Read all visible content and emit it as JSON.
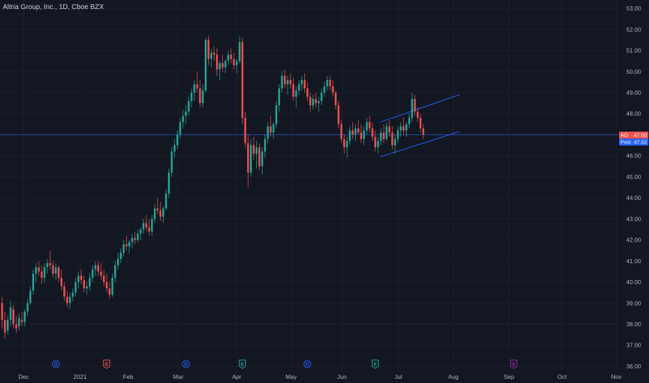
{
  "header": {
    "title": "Altria Group, Inc., 1D, Cboe BZX"
  },
  "price_labels": [
    {
      "tag": "AO",
      "value": "47.00",
      "color": "#ef5350"
    },
    {
      "tag": "Post",
      "value": "47.02",
      "color": "#2962ff"
    }
  ],
  "chart_data": {
    "type": "candlestick",
    "ylim": [
      35.8,
      53.4
    ],
    "yticks": [
      36,
      37,
      38,
      39,
      40,
      41,
      42,
      43,
      44,
      45,
      46,
      47,
      48,
      49,
      50,
      51,
      52,
      53
    ],
    "xticks": [
      "Dec",
      "2021",
      "Feb",
      "Mar",
      "Apr",
      "May",
      "Jun",
      "Jul",
      "Aug",
      "Sep",
      "Oct",
      "Nov"
    ],
    "current_price": 47.0,
    "up_color": "#26a69a",
    "down_color": "#ef5350",
    "line_color": "#2962ff",
    "channel": {
      "upper": [
        [
          0.0,
          47.6
        ],
        [
          1.0,
          48.9
        ]
      ],
      "lower": [
        [
          0.0,
          45.95
        ],
        [
          1.0,
          47.15
        ]
      ]
    },
    "ohlc": [
      [
        39.0,
        39.3,
        37.8,
        38.2
      ],
      [
        38.2,
        38.6,
        37.3,
        37.6
      ],
      [
        37.7,
        38.4,
        37.5,
        38.2
      ],
      [
        38.2,
        39.1,
        37.9,
        38.8
      ],
      [
        38.7,
        38.9,
        37.8,
        38.0
      ],
      [
        38.0,
        38.4,
        37.6,
        37.8
      ],
      [
        37.9,
        38.5,
        37.7,
        38.3
      ],
      [
        38.2,
        38.6,
        37.9,
        38.1
      ],
      [
        38.1,
        38.7,
        37.9,
        38.6
      ],
      [
        38.6,
        39.2,
        38.4,
        39.0
      ],
      [
        39.0,
        39.8,
        38.9,
        39.6
      ],
      [
        39.6,
        40.6,
        39.4,
        40.4
      ],
      [
        40.4,
        40.9,
        40.0,
        40.7
      ],
      [
        40.7,
        41.0,
        40.3,
        40.5
      ],
      [
        40.5,
        40.8,
        39.9,
        40.2
      ],
      [
        40.2,
        40.9,
        40.0,
        40.7
      ],
      [
        40.7,
        41.1,
        40.4,
        40.9
      ],
      [
        40.9,
        41.5,
        40.6,
        40.8
      ],
      [
        40.8,
        41.0,
        40.2,
        40.4
      ],
      [
        40.4,
        40.9,
        40.1,
        40.7
      ],
      [
        40.7,
        40.8,
        40.0,
        40.2
      ],
      [
        40.2,
        40.6,
        39.6,
        39.8
      ],
      [
        39.8,
        40.0,
        39.1,
        39.3
      ],
      [
        39.3,
        39.6,
        38.8,
        39.0
      ],
      [
        39.0,
        39.5,
        38.7,
        39.3
      ],
      [
        39.3,
        39.7,
        39.1,
        39.5
      ],
      [
        39.5,
        40.2,
        39.3,
        40.0
      ],
      [
        40.0,
        40.5,
        39.7,
        40.3
      ],
      [
        40.3,
        40.6,
        39.9,
        40.1
      ],
      [
        40.1,
        40.3,
        39.5,
        39.7
      ],
      [
        39.7,
        40.0,
        39.4,
        39.8
      ],
      [
        39.8,
        40.4,
        39.6,
        40.2
      ],
      [
        40.2,
        40.8,
        40.0,
        40.6
      ],
      [
        40.6,
        41.0,
        40.3,
        40.8
      ],
      [
        40.8,
        41.0,
        40.3,
        40.5
      ],
      [
        40.5,
        40.9,
        40.1,
        40.3
      ],
      [
        40.3,
        40.6,
        39.8,
        40.0
      ],
      [
        40.0,
        40.4,
        39.5,
        39.7
      ],
      [
        39.7,
        40.0,
        39.2,
        39.4
      ],
      [
        39.4,
        40.4,
        39.3,
        40.2
      ],
      [
        40.2,
        41.0,
        40.0,
        40.8
      ],
      [
        40.8,
        41.4,
        40.6,
        41.1
      ],
      [
        41.1,
        41.6,
        40.9,
        41.4
      ],
      [
        41.4,
        42.0,
        41.2,
        41.8
      ],
      [
        41.8,
        42.2,
        41.5,
        41.7
      ],
      [
        41.7,
        42.0,
        41.4,
        41.9
      ],
      [
        41.9,
        42.3,
        41.6,
        42.1
      ],
      [
        42.1,
        42.4,
        41.8,
        42.0
      ],
      [
        42.0,
        42.5,
        41.9,
        42.3
      ],
      [
        42.3,
        42.6,
        42.0,
        42.5
      ],
      [
        42.5,
        43.0,
        42.3,
        42.8
      ],
      [
        42.8,
        43.2,
        42.4,
        42.6
      ],
      [
        42.6,
        43.0,
        42.2,
        42.4
      ],
      [
        42.4,
        43.2,
        42.2,
        43.0
      ],
      [
        43.0,
        43.7,
        42.8,
        43.5
      ],
      [
        43.5,
        44.0,
        43.2,
        43.4
      ],
      [
        43.4,
        43.8,
        42.9,
        43.1
      ],
      [
        43.1,
        43.6,
        42.8,
        43.5
      ],
      [
        43.5,
        44.4,
        43.4,
        44.2
      ],
      [
        44.2,
        45.4,
        44.0,
        45.2
      ],
      [
        45.2,
        46.4,
        45.0,
        46.2
      ],
      [
        46.2,
        46.8,
        45.9,
        46.5
      ],
      [
        46.5,
        47.2,
        46.3,
        47.0
      ],
      [
        47.0,
        47.8,
        46.8,
        47.6
      ],
      [
        47.6,
        48.2,
        47.3,
        47.9
      ],
      [
        47.9,
        48.4,
        47.5,
        48.1
      ],
      [
        48.1,
        48.8,
        47.9,
        48.6
      ],
      [
        48.6,
        49.2,
        48.3,
        49.0
      ],
      [
        49.0,
        49.6,
        48.6,
        49.4
      ],
      [
        49.4,
        50.0,
        49.0,
        49.2
      ],
      [
        49.2,
        49.6,
        48.3,
        48.5
      ],
      [
        48.5,
        49.4,
        48.3,
        49.1
      ],
      [
        49.1,
        51.6,
        49.0,
        51.5
      ],
      [
        51.5,
        51.7,
        50.3,
        50.6
      ],
      [
        50.6,
        51.1,
        50.2,
        50.9
      ],
      [
        50.9,
        51.2,
        50.5,
        50.8
      ],
      [
        50.8,
        51.1,
        49.8,
        50.1
      ],
      [
        50.1,
        50.5,
        49.6,
        50.4
      ],
      [
        50.4,
        50.8,
        50.0,
        50.2
      ],
      [
        50.2,
        50.6,
        49.9,
        50.5
      ],
      [
        50.5,
        51.0,
        50.3,
        50.8
      ],
      [
        50.8,
        51.1,
        50.4,
        50.6
      ],
      [
        50.6,
        50.9,
        50.1,
        50.3
      ],
      [
        50.3,
        50.6,
        49.9,
        50.5
      ],
      [
        50.5,
        51.7,
        50.4,
        51.4
      ],
      [
        51.4,
        51.6,
        47.5,
        47.8
      ],
      [
        47.8,
        48.1,
        46.4,
        46.6
      ],
      [
        46.6,
        47.0,
        44.5,
        45.2
      ],
      [
        45.2,
        46.8,
        45.0,
        46.5
      ],
      [
        46.5,
        46.9,
        45.8,
        46.1
      ],
      [
        46.1,
        46.7,
        45.4,
        46.4
      ],
      [
        46.4,
        46.6,
        45.3,
        45.5
      ],
      [
        45.5,
        46.4,
        45.1,
        46.2
      ],
      [
        46.2,
        47.0,
        45.9,
        46.8
      ],
      [
        46.8,
        47.6,
        46.6,
        47.4
      ],
      [
        47.4,
        47.9,
        46.9,
        47.1
      ],
      [
        47.1,
        47.6,
        46.8,
        47.5
      ],
      [
        47.5,
        48.6,
        47.3,
        48.4
      ],
      [
        48.4,
        49.4,
        48.1,
        49.2
      ],
      [
        49.2,
        50.0,
        49.0,
        49.8
      ],
      [
        49.8,
        50.1,
        49.2,
        49.4
      ],
      [
        49.4,
        49.8,
        48.9,
        49.6
      ],
      [
        49.6,
        49.9,
        49.2,
        49.4
      ],
      [
        49.4,
        49.7,
        48.6,
        48.8
      ],
      [
        48.8,
        49.3,
        48.3,
        49.1
      ],
      [
        49.1,
        49.6,
        48.9,
        49.4
      ],
      [
        49.4,
        49.8,
        49.1,
        49.6
      ],
      [
        49.6,
        49.9,
        49.0,
        49.2
      ],
      [
        49.2,
        49.5,
        48.6,
        48.8
      ],
      [
        48.8,
        49.0,
        48.1,
        48.4
      ],
      [
        48.4,
        48.9,
        48.2,
        48.7
      ],
      [
        48.7,
        49.0,
        48.3,
        48.5
      ],
      [
        48.5,
        48.8,
        48.1,
        48.6
      ],
      [
        48.6,
        49.2,
        48.4,
        49.0
      ],
      [
        49.0,
        49.5,
        48.8,
        49.3
      ],
      [
        49.3,
        49.8,
        49.1,
        49.6
      ],
      [
        49.6,
        49.8,
        49.1,
        49.3
      ],
      [
        49.3,
        49.6,
        48.8,
        49.0
      ],
      [
        49.0,
        49.1,
        48.2,
        48.4
      ],
      [
        48.4,
        48.6,
        47.3,
        47.5
      ],
      [
        47.5,
        47.7,
        46.6,
        46.8
      ],
      [
        46.8,
        47.0,
        46.1,
        46.4
      ],
      [
        46.4,
        46.9,
        45.9,
        46.7
      ],
      [
        46.7,
        47.4,
        46.5,
        47.2
      ],
      [
        47.2,
        47.6,
        46.8,
        47.0
      ],
      [
        47.0,
        47.5,
        46.7,
        47.3
      ],
      [
        47.3,
        47.7,
        47.0,
        47.1
      ],
      [
        47.1,
        47.5,
        46.6,
        46.8
      ],
      [
        46.8,
        47.4,
        46.5,
        47.2
      ],
      [
        47.2,
        47.8,
        47.0,
        47.6
      ],
      [
        47.6,
        47.9,
        47.1,
        47.3
      ],
      [
        47.3,
        47.6,
        46.7,
        46.9
      ],
      [
        46.9,
        47.2,
        46.2,
        46.4
      ],
      [
        46.4,
        46.9,
        46.1,
        46.7
      ],
      [
        46.7,
        47.3,
        46.5,
        47.1
      ],
      [
        47.1,
        47.5,
        46.6,
        46.8
      ],
      [
        46.8,
        47.6,
        46.7,
        47.4
      ],
      [
        47.4,
        47.7,
        46.9,
        47.1
      ],
      [
        47.1,
        47.4,
        46.3,
        46.5
      ],
      [
        46.5,
        47.0,
        46.1,
        46.8
      ],
      [
        46.8,
        47.4,
        46.6,
        47.2
      ],
      [
        47.2,
        47.6,
        46.9,
        47.4
      ],
      [
        47.4,
        47.8,
        47.0,
        47.2
      ],
      [
        47.2,
        47.6,
        46.9,
        47.5
      ],
      [
        47.5,
        48.0,
        47.3,
        47.8
      ],
      [
        47.8,
        49.0,
        47.6,
        48.7
      ],
      [
        48.7,
        48.9,
        47.9,
        48.1
      ],
      [
        48.1,
        48.3,
        47.6,
        47.8
      ],
      [
        47.8,
        48.0,
        47.1,
        47.3
      ],
      [
        47.3,
        47.5,
        46.8,
        47.0
      ]
    ],
    "events": [
      {
        "letter": "D",
        "date_index": 19,
        "color": "#2962ff"
      },
      {
        "letter": "E",
        "date_index": 37,
        "color": "#ef5350"
      },
      {
        "letter": "D",
        "date_index": 65,
        "color": "#2962ff"
      },
      {
        "letter": "E",
        "date_index": 85,
        "color": "#26a69a"
      },
      {
        "letter": "D",
        "date_index": 108,
        "color": "#2962ff"
      },
      {
        "letter": "E",
        "date_index": 132,
        "color": "#26a69a"
      },
      {
        "letter": "E",
        "date_index": 181,
        "color": "#9c27b0"
      }
    ]
  }
}
